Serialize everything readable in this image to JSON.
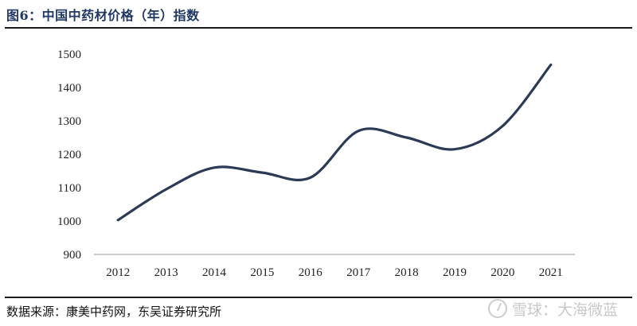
{
  "figure": {
    "title": "图6：中国中药材价格（年）指数",
    "source": "数据来源：康美中药网，东吴证券研究所",
    "watermark": "雪球：大海微蓝",
    "watermark_icon": "xueqiu-logo-icon"
  },
  "chart_data": {
    "type": "line",
    "title": "",
    "xlabel": "",
    "ylabel": "",
    "categories": [
      "2012",
      "2013",
      "2014",
      "2015",
      "2016",
      "2017",
      "2018",
      "2019",
      "2020",
      "2021"
    ],
    "series": [
      {
        "values": [
          1003,
          1095,
          1160,
          1145,
          1130,
          1270,
          1250,
          1215,
          1285,
          1468
        ]
      }
    ],
    "ylim": [
      900,
      1500
    ],
    "yticks": [
      900,
      1000,
      1100,
      1200,
      1300,
      1400,
      1500
    ],
    "grid": false,
    "legend": "none",
    "line_color": "#2b3a55"
  }
}
